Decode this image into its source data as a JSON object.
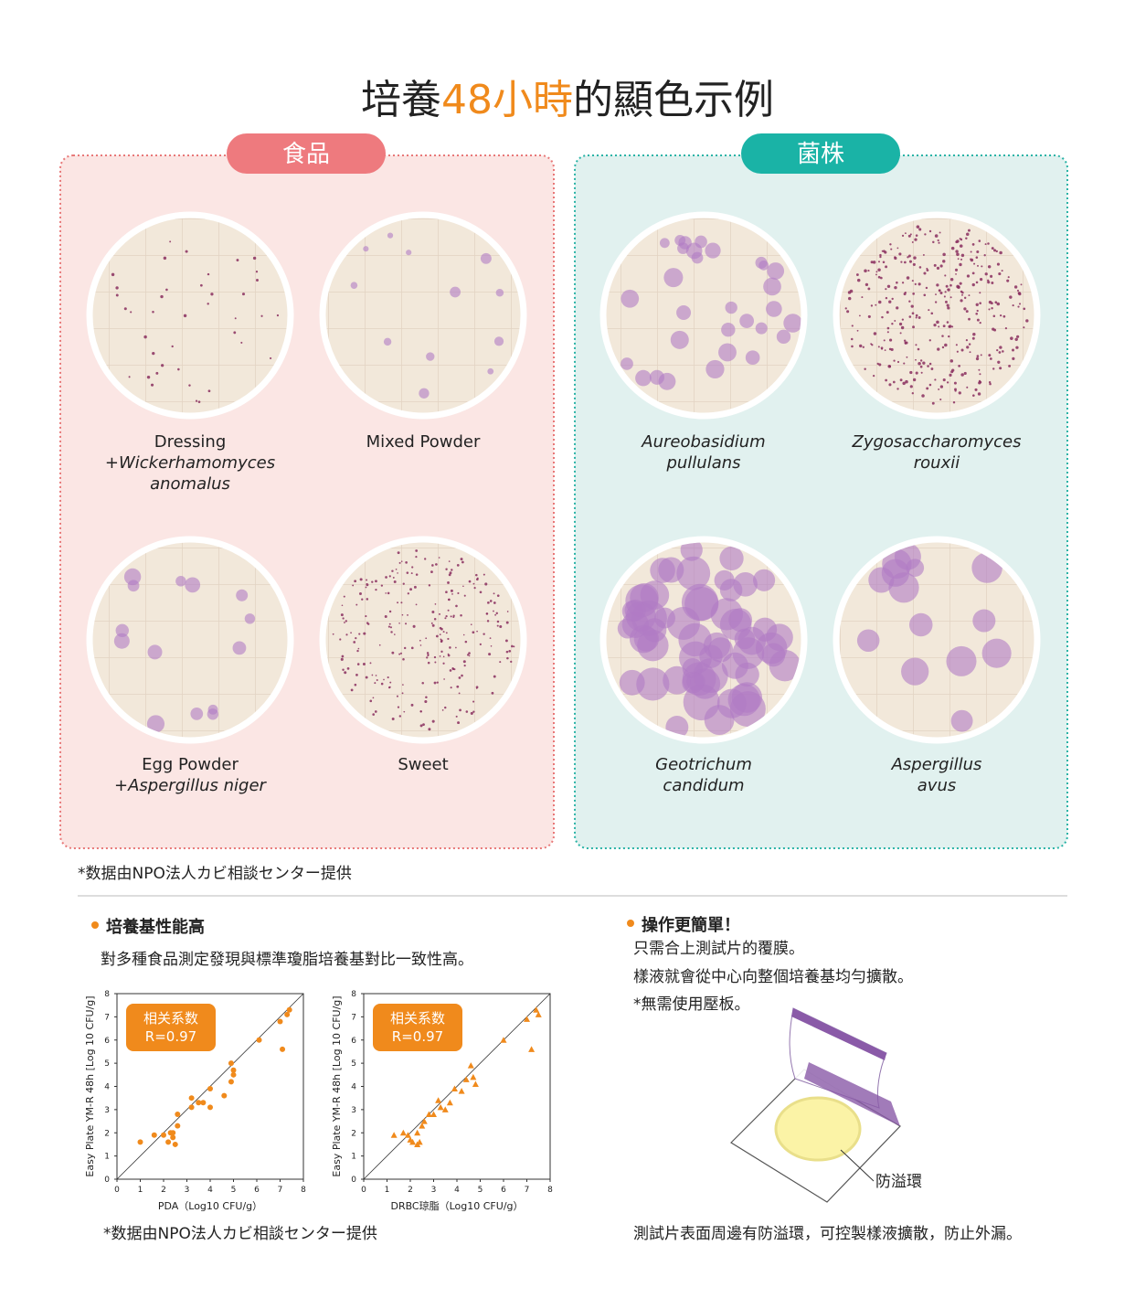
{
  "title": [
    "培養",
    "48小時",
    "的顯色示例"
  ],
  "panels": [
    {
      "label": "食品",
      "items": [
        {
          "lines": [
            "Dressing",
            "+Wickerhamomyces",
            "anomalus"
          ],
          "italic": [
            false,
            true,
            true
          ]
        },
        {
          "lines": [
            "Mixed Powder"
          ],
          "italic": [
            false
          ]
        },
        {
          "lines": [
            "Egg Powder",
            "+Aspergillus niger"
          ],
          "italic": [
            false,
            true
          ]
        },
        {
          "lines": [
            "Sweet"
          ],
          "italic": [
            false
          ]
        }
      ]
    },
    {
      "label": "菌株",
      "items": [
        {
          "lines": [
            "Aureobasidium",
            "pullulans"
          ],
          "italic": [
            true,
            true
          ]
        },
        {
          "lines": [
            "Zygosaccharomyces",
            "rouxii"
          ],
          "italic": [
            true,
            true
          ]
        },
        {
          "lines": [
            "Geotrichum",
            "candidum"
          ],
          "italic": [
            true,
            true
          ]
        },
        {
          "lines": [
            "Aspergillus",
            "avus"
          ],
          "italic": [
            true,
            true
          ]
        }
      ]
    }
  ],
  "notes": [
    "*数据由NPO法人カビ相談センター提供",
    "*数据由NPO法人カビ相談センター提供"
  ],
  "performance": {
    "heading": "培養基性能高",
    "text": "對多種食品測定發現與標準瓊脂培養基對比一致性高。"
  },
  "operation": {
    "heading": "操作更簡單！",
    "lines": [
      "只需合上測試片的覆膜。",
      "樣液就會從中心向整個培養基均勻擴散。",
      "*無需使用壓板。"
    ],
    "callout": "防溢環",
    "caption": "測試片表面周邊有防溢環，可控製樣液擴散，防止外漏。"
  },
  "chart_data": [
    {
      "type": "scatter",
      "marker": "circle",
      "color": "#f08a1c",
      "y_label": "Easy Plate YM-R 48h [Log 10 CFU/g]",
      "x_label": "PDA（Log10 CFU/g）",
      "annotation": [
        "相关系数",
        "R=0.97"
      ],
      "xlim": [
        0,
        8
      ],
      "ylim": [
        0,
        8
      ],
      "xticks": [
        0,
        1,
        2,
        3,
        4,
        5,
        6,
        7,
        8
      ],
      "yticks": [
        0,
        1,
        2,
        3,
        4,
        5,
        6,
        7,
        8
      ],
      "x": [
        1.0,
        1.6,
        2.0,
        2.2,
        2.3,
        2.4,
        2.5,
        2.4,
        2.6,
        2.6,
        3.2,
        3.2,
        3.5,
        3.7,
        4.0,
        4.0,
        4.6,
        4.9,
        5.0,
        5.0,
        4.9,
        6.1,
        7.0,
        7.1,
        7.3,
        7.4
      ],
      "values": [
        1.6,
        1.9,
        1.9,
        1.6,
        2.0,
        1.8,
        1.5,
        2.0,
        2.3,
        2.8,
        3.5,
        3.1,
        3.3,
        3.3,
        3.1,
        3.9,
        3.6,
        5.0,
        4.7,
        4.5,
        4.2,
        6.0,
        6.8,
        5.6,
        7.1,
        7.3
      ]
    },
    {
      "type": "scatter",
      "marker": "triangle",
      "color": "#f08a1c",
      "y_label": "Easy Plate YM-R 48h [Log 10 CFU/g]",
      "x_label": "DRBC琼脂（Log10 CFU/g）",
      "annotation": [
        "相关系数",
        "R=0.97"
      ],
      "xlim": [
        0,
        8
      ],
      "ylim": [
        0,
        8
      ],
      "xticks": [
        0,
        1,
        2,
        3,
        4,
        5,
        6,
        7,
        8
      ],
      "yticks": [
        0,
        1,
        2,
        3,
        4,
        5,
        6,
        7,
        8
      ],
      "x": [
        1.3,
        1.7,
        1.9,
        2.0,
        2.1,
        2.3,
        2.4,
        2.3,
        2.5,
        2.6,
        2.8,
        3.0,
        3.2,
        3.3,
        3.5,
        3.7,
        3.9,
        4.2,
        4.4,
        4.6,
        4.7,
        4.8,
        6.0,
        7.0,
        7.2,
        7.4,
        7.5
      ],
      "values": [
        1.9,
        2.0,
        1.9,
        1.7,
        1.6,
        1.5,
        1.6,
        2.0,
        2.3,
        2.5,
        2.8,
        2.8,
        3.4,
        3.1,
        3.0,
        3.3,
        3.9,
        3.8,
        4.3,
        4.9,
        4.4,
        4.1,
        6.0,
        6.9,
        5.6,
        7.3,
        7.1
      ]
    }
  ]
}
